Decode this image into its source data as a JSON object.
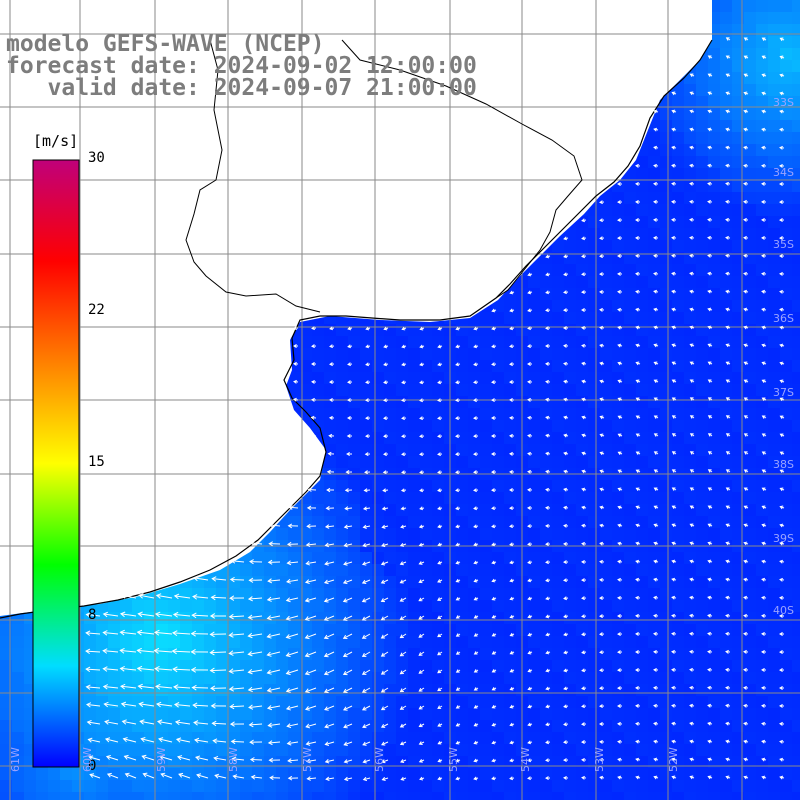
{
  "header": {
    "line1": "modelo GEFS-WAVE (NCEP)",
    "line2": "forecast date: 2024-09-02 12:00:00",
    "line3": "   valid date: 2024-09-07 21:00:00"
  },
  "colorbar": {
    "unit": "[m/s]",
    "ticks": [
      "30",
      "22",
      "15",
      "8",
      "0"
    ],
    "range": [
      0,
      30
    ],
    "colors": [
      "#0000ff",
      "#00ddff",
      "#00ff00",
      "#ffff00",
      "#ff8000",
      "#ff0000",
      "#c0007a"
    ]
  },
  "map": {
    "land_color": "#ffffff",
    "coast_color": "#000000",
    "grid_color": "#8a8a8a",
    "vector_color": "#ffffff",
    "lat_labels": [
      "33S",
      "34S",
      "35S",
      "36S",
      "37S",
      "38S",
      "39S",
      "40S"
    ],
    "lon_labels": [
      "61W",
      "60W",
      "59W",
      "58W",
      "57W",
      "56W",
      "55W",
      "54W",
      "53W",
      "52W"
    ]
  }
}
